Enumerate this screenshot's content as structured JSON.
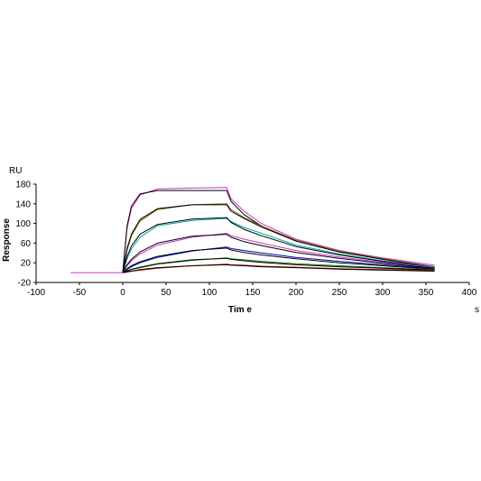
{
  "chart_data": {
    "type": "line",
    "title": "",
    "xlabel": "Tim e",
    "ylabel": "Response",
    "y_unit": "RU",
    "x_unit": "s",
    "xlim": [
      -100,
      400
    ],
    "ylim": [
      -20,
      180
    ],
    "x_ticks": [
      "-100",
      "-50",
      "0",
      "50",
      "100",
      "150",
      "200",
      "250",
      "300",
      "350",
      "400"
    ],
    "y_ticks": [
      "-20",
      "20",
      "60",
      "100",
      "140",
      "180"
    ],
    "x_tick_values": [
      -100,
      -50,
      0,
      50,
      100,
      150,
      200,
      250,
      300,
      350,
      400
    ],
    "y_tick_values": [
      -20,
      20,
      60,
      100,
      140,
      180
    ],
    "grid": false,
    "legend": "none",
    "association_start": 0,
    "dissociation_start": 120,
    "end_time": 360,
    "baseline_start": -60,
    "series": [
      {
        "color": "#cc33cc",
        "values": [
          [
            -60,
            0
          ],
          [
            0,
            0
          ],
          [
            5,
            90
          ],
          [
            10,
            130
          ],
          [
            20,
            158
          ],
          [
            40,
            170
          ],
          [
            80,
            172
          ],
          [
            120,
            173
          ],
          [
            125,
            150
          ],
          [
            140,
            125
          ],
          [
            160,
            100
          ],
          [
            200,
            68
          ],
          [
            250,
            45
          ],
          [
            300,
            30
          ],
          [
            360,
            15
          ]
        ]
      },
      {
        "color": "#000000",
        "values": [
          [
            0,
            0
          ],
          [
            5,
            95
          ],
          [
            10,
            135
          ],
          [
            20,
            160
          ],
          [
            40,
            167
          ],
          [
            80,
            167
          ],
          [
            120,
            167
          ],
          [
            125,
            145
          ],
          [
            140,
            118
          ],
          [
            160,
            95
          ],
          [
            200,
            64
          ],
          [
            250,
            42
          ],
          [
            300,
            28
          ],
          [
            360,
            12
          ]
        ]
      },
      {
        "color": "#8b6914",
        "values": [
          [
            0,
            0
          ],
          [
            5,
            45
          ],
          [
            10,
            75
          ],
          [
            20,
            105
          ],
          [
            40,
            128
          ],
          [
            80,
            138
          ],
          [
            120,
            140
          ],
          [
            125,
            128
          ],
          [
            140,
            112
          ],
          [
            160,
            95
          ],
          [
            200,
            66
          ],
          [
            250,
            44
          ],
          [
            300,
            28
          ],
          [
            360,
            12
          ]
        ]
      },
      {
        "color": "#000000",
        "values": [
          [
            0,
            0
          ],
          [
            5,
            50
          ],
          [
            10,
            78
          ],
          [
            20,
            108
          ],
          [
            40,
            130
          ],
          [
            80,
            138
          ],
          [
            120,
            138
          ],
          [
            125,
            125
          ],
          [
            140,
            110
          ],
          [
            160,
            93
          ],
          [
            200,
            64
          ],
          [
            250,
            42
          ],
          [
            300,
            27
          ],
          [
            360,
            11
          ]
        ]
      },
      {
        "color": "#00aaaa",
        "values": [
          [
            0,
            0
          ],
          [
            5,
            28
          ],
          [
            10,
            48
          ],
          [
            20,
            72
          ],
          [
            40,
            95
          ],
          [
            80,
            106
          ],
          [
            120,
            110
          ],
          [
            125,
            104
          ],
          [
            140,
            92
          ],
          [
            160,
            80
          ],
          [
            200,
            56
          ],
          [
            250,
            38
          ],
          [
            300,
            24
          ],
          [
            360,
            11
          ]
        ]
      },
      {
        "color": "#000000",
        "values": [
          [
            0,
            0
          ],
          [
            5,
            33
          ],
          [
            10,
            54
          ],
          [
            20,
            78
          ],
          [
            40,
            98
          ],
          [
            80,
            109
          ],
          [
            120,
            112
          ],
          [
            125,
            102
          ],
          [
            140,
            88
          ],
          [
            160,
            75
          ],
          [
            200,
            53
          ],
          [
            250,
            36
          ],
          [
            300,
            23
          ],
          [
            360,
            10
          ]
        ]
      },
      {
        "color": "#cc33cc",
        "values": [
          [
            0,
            0
          ],
          [
            5,
            14
          ],
          [
            10,
            24
          ],
          [
            20,
            38
          ],
          [
            40,
            56
          ],
          [
            80,
            72
          ],
          [
            120,
            80
          ],
          [
            125,
            75
          ],
          [
            140,
            68
          ],
          [
            160,
            60
          ],
          [
            200,
            45
          ],
          [
            250,
            32
          ],
          [
            300,
            21
          ],
          [
            360,
            10
          ]
        ]
      },
      {
        "color": "#000000",
        "values": [
          [
            0,
            0
          ],
          [
            5,
            16
          ],
          [
            10,
            27
          ],
          [
            20,
            42
          ],
          [
            40,
            60
          ],
          [
            80,
            74
          ],
          [
            120,
            78
          ],
          [
            125,
            72
          ],
          [
            140,
            63
          ],
          [
            160,
            55
          ],
          [
            200,
            41
          ],
          [
            250,
            29
          ],
          [
            300,
            19
          ],
          [
            360,
            9
          ]
        ]
      },
      {
        "color": "#0000cc",
        "values": [
          [
            0,
            0
          ],
          [
            5,
            7
          ],
          [
            10,
            12
          ],
          [
            20,
            20
          ],
          [
            40,
            31
          ],
          [
            80,
            44
          ],
          [
            120,
            52
          ],
          [
            125,
            49
          ],
          [
            140,
            45
          ],
          [
            160,
            40
          ],
          [
            200,
            31
          ],
          [
            250,
            23
          ],
          [
            300,
            16
          ],
          [
            360,
            8
          ]
        ]
      },
      {
        "color": "#000000",
        "values": [
          [
            0,
            0
          ],
          [
            5,
            8
          ],
          [
            10,
            14
          ],
          [
            20,
            22
          ],
          [
            40,
            33
          ],
          [
            80,
            45
          ],
          [
            120,
            50
          ],
          [
            125,
            46
          ],
          [
            140,
            41
          ],
          [
            160,
            36
          ],
          [
            200,
            28
          ],
          [
            250,
            20
          ],
          [
            300,
            14
          ],
          [
            360,
            7
          ]
        ]
      },
      {
        "color": "#008800",
        "values": [
          [
            0,
            0
          ],
          [
            5,
            3
          ],
          [
            10,
            6
          ],
          [
            20,
            10
          ],
          [
            40,
            17
          ],
          [
            80,
            25
          ],
          [
            120,
            30
          ],
          [
            125,
            28
          ],
          [
            140,
            26
          ],
          [
            160,
            23
          ],
          [
            200,
            18
          ],
          [
            250,
            14
          ],
          [
            300,
            10
          ],
          [
            360,
            6
          ]
        ]
      },
      {
        "color": "#000000",
        "values": [
          [
            0,
            0
          ],
          [
            5,
            4
          ],
          [
            10,
            7
          ],
          [
            20,
            11
          ],
          [
            40,
            18
          ],
          [
            80,
            26
          ],
          [
            120,
            29
          ],
          [
            125,
            27
          ],
          [
            140,
            24
          ],
          [
            160,
            21
          ],
          [
            200,
            16
          ],
          [
            250,
            12
          ],
          [
            300,
            9
          ],
          [
            360,
            5
          ]
        ]
      },
      {
        "color": "#cc0000",
        "values": [
          [
            0,
            0
          ],
          [
            5,
            1
          ],
          [
            10,
            3
          ],
          [
            20,
            5
          ],
          [
            40,
            9
          ],
          [
            80,
            14
          ],
          [
            120,
            17
          ],
          [
            125,
            16
          ],
          [
            140,
            15
          ],
          [
            160,
            13
          ],
          [
            200,
            11
          ],
          [
            250,
            8
          ],
          [
            300,
            6
          ],
          [
            360,
            4
          ]
        ]
      },
      {
        "color": "#000000",
        "values": [
          [
            0,
            0
          ],
          [
            5,
            2
          ],
          [
            10,
            3
          ],
          [
            20,
            6
          ],
          [
            40,
            10
          ],
          [
            80,
            14
          ],
          [
            120,
            16
          ],
          [
            125,
            15
          ],
          [
            140,
            14
          ],
          [
            160,
            12
          ],
          [
            200,
            10
          ],
          [
            250,
            7
          ],
          [
            300,
            5
          ],
          [
            360,
            3
          ]
        ]
      }
    ]
  }
}
